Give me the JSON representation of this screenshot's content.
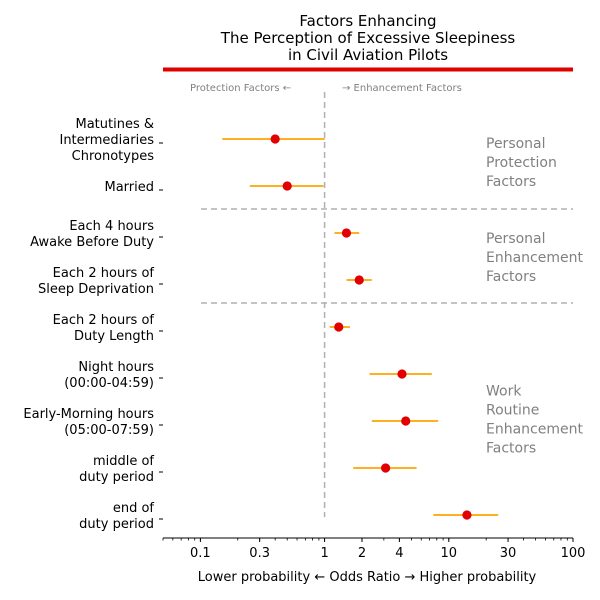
{
  "chart_data": {
    "type": "forest",
    "title": [
      "Factors Enhancing",
      "The Perception of Excessive Sleepiness",
      "in Civil Aviation Pilots"
    ],
    "xlabel": "Lower probability ← Odds Ratio → Higher probability",
    "xscale": "log",
    "xlim": [
      0.05,
      100
    ],
    "xticks": [
      0.1,
      0.3,
      1,
      2,
      4,
      10,
      30,
      100
    ],
    "xtick_labels": [
      "0.1",
      "0.3",
      "1",
      "2",
      "4",
      "10",
      "30",
      "100"
    ],
    "reference_line": 1,
    "direction_labels": {
      "left": "Protection Factors ←",
      "right": "→ Enhancement Factors"
    },
    "factors": [
      {
        "label": [
          "Matutines &",
          "Intermediaries",
          "Chronotypes"
        ],
        "or": 0.4,
        "ci": [
          0.15,
          1.0
        ]
      },
      {
        "label": [
          "Married"
        ],
        "or": 0.5,
        "ci": [
          0.25,
          0.98
        ]
      },
      {
        "label": [
          "Each 4 hours",
          "Awake Before Duty"
        ],
        "or": 1.5,
        "ci": [
          1.2,
          1.9
        ]
      },
      {
        "label": [
          "Each 2 hours of",
          "Sleep Deprivation"
        ],
        "or": 1.9,
        "ci": [
          1.5,
          2.4
        ]
      },
      {
        "label": [
          "Each 2 hours of",
          "Duty Length"
        ],
        "or": 1.3,
        "ci": [
          1.1,
          1.6
        ]
      },
      {
        "label": [
          "Night hours",
          "(00:00-04:59)"
        ],
        "or": 4.2,
        "ci": [
          2.3,
          7.3
        ]
      },
      {
        "label": [
          "Early-Morning hours",
          "(05:00-07:59)"
        ],
        "or": 4.5,
        "ci": [
          2.4,
          8.2
        ]
      },
      {
        "label": [
          "middle of",
          "duty period"
        ],
        "or": 3.1,
        "ci": [
          1.7,
          5.5
        ]
      },
      {
        "label": [
          "end of",
          "duty period"
        ],
        "or": 14,
        "ci": [
          7.5,
          25
        ]
      }
    ],
    "groups": [
      {
        "label": [
          "Personal",
          "Protection",
          "Factors"
        ]
      },
      {
        "label": [
          "Personal",
          "Enhancement",
          "Factors"
        ]
      },
      {
        "label": [
          "Work",
          "Routine",
          "Enhancement",
          "Factors"
        ]
      }
    ],
    "colors": {
      "point": "#e00000",
      "ci": "#ffa500",
      "title_bar": "#e00000",
      "reference": "#b0b0b0",
      "separator": "#b0b0b0",
      "group_text": "#808080"
    }
  }
}
